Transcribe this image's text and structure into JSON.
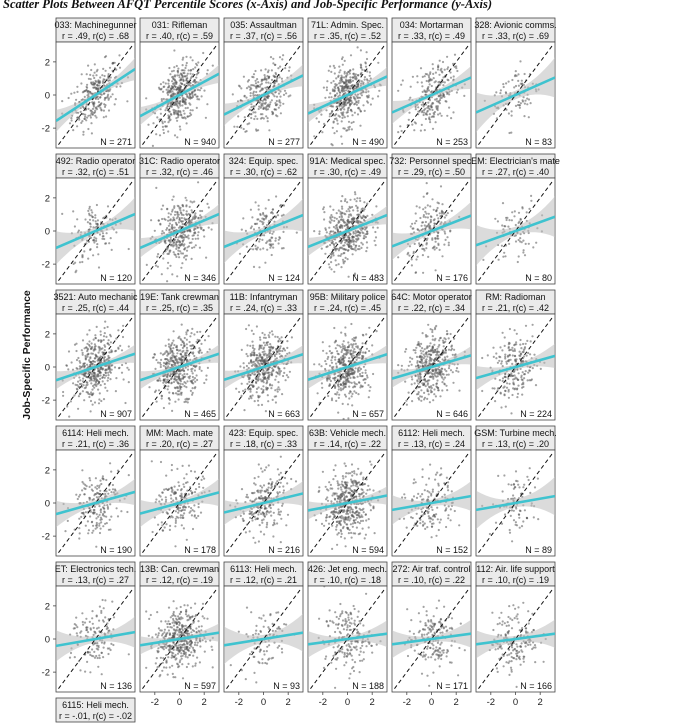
{
  "page_title": "Scatter Plots Between AFQT Percentile Scores (x-Axis) and Job-Specific Performance (y-Axis)",
  "chart_data": {
    "type": "scatter",
    "layout": "small-multiples",
    "ylabel": "Job-Specific Performance",
    "xlabel": "",
    "xlim": [
      -3.2,
      3.2
    ],
    "ylim": [
      -3.2,
      3.2
    ],
    "x_ticks": [
      "-2",
      "0",
      "2"
    ],
    "y_ticks": [
      "2",
      "0",
      "-2"
    ],
    "reference_line_slope": 1,
    "panels": [
      {
        "code": "033: Machinegunner",
        "r": ".49",
        "rc": ".68",
        "n": "271"
      },
      {
        "code": "031: Rifleman",
        "r": ".40",
        "rc": ".59",
        "n": "940"
      },
      {
        "code": "035: Assaultman",
        "r": ".37",
        "rc": ".56",
        "n": "277"
      },
      {
        "code": "71L: Admin. Spec.",
        "r": ".35",
        "rc": ".52",
        "n": "490"
      },
      {
        "code": "034: Mortarman",
        "r": ".33",
        "rc": ".49",
        "n": "253"
      },
      {
        "code": "328: Avionic comms.",
        "r": ".33",
        "rc": ".69",
        "n": "83"
      },
      {
        "code": "492: Radio operator",
        "r": ".32",
        "rc": ".51",
        "n": "120"
      },
      {
        "code": "31C: Radio operator",
        "r": ".32",
        "rc": ".46",
        "n": "346"
      },
      {
        "code": "324: Equip. spec.",
        "r": ".30",
        "rc": ".62",
        "n": "124"
      },
      {
        "code": "91A: Medical spec.",
        "r": ".30",
        "rc": ".49",
        "n": "483"
      },
      {
        "code": "732: Personnel spec.",
        "r": ".29",
        "rc": ".50",
        "n": "176"
      },
      {
        "code": "EM: Electrician's mate",
        "r": ".27",
        "rc": ".40",
        "n": "80"
      },
      {
        "code": "3521: Auto mechanic",
        "r": ".25",
        "rc": ".44",
        "n": "907"
      },
      {
        "code": "19E: Tank crewman",
        "r": ".25",
        "rc": ".35",
        "n": "465"
      },
      {
        "code": "11B: Infantryman",
        "r": ".24",
        "rc": ".33",
        "n": "663"
      },
      {
        "code": "95B: Military police",
        "r": ".24",
        "rc": ".45",
        "n": "657"
      },
      {
        "code": "64C: Motor operator",
        "r": ".22",
        "rc": ".34",
        "n": "646"
      },
      {
        "code": "RM: Radioman",
        "r": ".21",
        "rc": ".42",
        "n": "224"
      },
      {
        "code": "6114: Heli mech.",
        "r": ".21",
        "rc": ".36",
        "n": "190"
      },
      {
        "code": "MM: Mach. mate",
        "r": ".20",
        "rc": ".27",
        "n": "178"
      },
      {
        "code": "423: Equip. spec.",
        "r": ".18",
        "rc": ".33",
        "n": "216"
      },
      {
        "code": "63B: Vehicle mech.",
        "r": ".14",
        "rc": ".22",
        "n": "594"
      },
      {
        "code": "6112: Heli mech.",
        "r": ".13",
        "rc": ".24",
        "n": "152"
      },
      {
        "code": "GSM: Turbine mech.",
        "r": ".13",
        "rc": ".20",
        "n": "89"
      },
      {
        "code": "ET: Electronics tech.",
        "r": ".13",
        "rc": ".27",
        "n": "136"
      },
      {
        "code": "13B: Can. crewman",
        "r": ".12",
        "rc": ".19",
        "n": "597"
      },
      {
        "code": "6113: Heli mech.",
        "r": ".12",
        "rc": ".21",
        "n": "93"
      },
      {
        "code": "426: Jet eng. mech.",
        "r": ".10",
        "rc": ".18",
        "n": "188"
      },
      {
        "code": "272: Air traf. control",
        "r": ".10",
        "rc": ".22",
        "n": "171"
      },
      {
        "code": "112: Air. life support",
        "r": ".10",
        "rc": ".19",
        "n": "166"
      },
      {
        "code": "6115: Heli mech.",
        "r": "-.01",
        "rc": "-.02",
        "n": ""
      }
    ]
  }
}
